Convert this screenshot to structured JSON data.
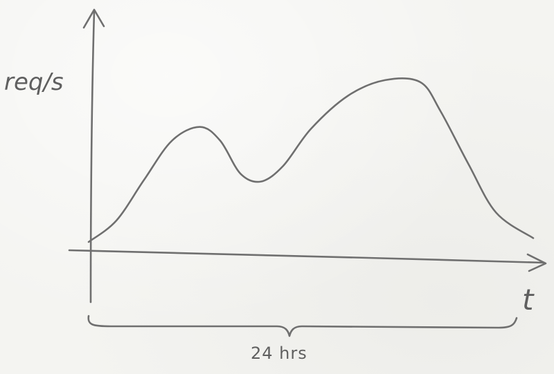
{
  "chart_data": {
    "type": "line",
    "title": "",
    "xlabel": "t",
    "ylabel": "req/s",
    "duration_label": "24 hrs",
    "x_unit": "hours",
    "xlim": [
      0,
      24
    ],
    "ylim": [
      0,
      1
    ],
    "grid": false,
    "legend": "none",
    "series": [
      {
        "x": [
          0,
          1.5,
          3,
          4.5,
          6,
          7.1,
          8.2,
          9.3,
          10.5,
          12,
          14,
          16,
          17.9,
          19,
          20.5,
          22,
          24
        ],
        "y": [
          0.0,
          0.11,
          0.32,
          0.52,
          0.59,
          0.52,
          0.35,
          0.31,
          0.39,
          0.58,
          0.75,
          0.83,
          0.82,
          0.67,
          0.4,
          0.15,
          0.02
        ]
      }
    ]
  },
  "colors": {
    "ink": "#6f6f6f",
    "paper": "#f4f4f1"
  }
}
